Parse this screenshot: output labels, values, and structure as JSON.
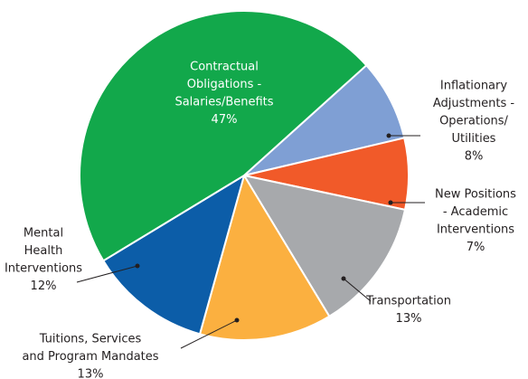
{
  "chart_data": {
    "type": "pie",
    "categories": [
      [
        "Inflationary",
        "Adjustments -",
        "Operations/",
        "Utilities"
      ],
      [
        "New Positions",
        "- Academic",
        "Interventions"
      ],
      [
        "Transportation"
      ],
      [
        "Tuitions, Services",
        "and Program Mandates"
      ],
      [
        "Mental",
        "Health",
        "Interventions"
      ],
      [
        "Contractual",
        "Obligations -",
        "Salaries/Benefits"
      ]
    ],
    "values": [
      8,
      7,
      13,
      13,
      12,
      47
    ],
    "value_labels": [
      "8%",
      "7%",
      "13%",
      "13%",
      "12%",
      "47%"
    ],
    "colors": [
      "#7f9fd4",
      "#f15a29",
      "#a7a9ac",
      "#fbb040",
      "#0c5da8",
      "#12a84b"
    ],
    "start_angle": 48
  }
}
